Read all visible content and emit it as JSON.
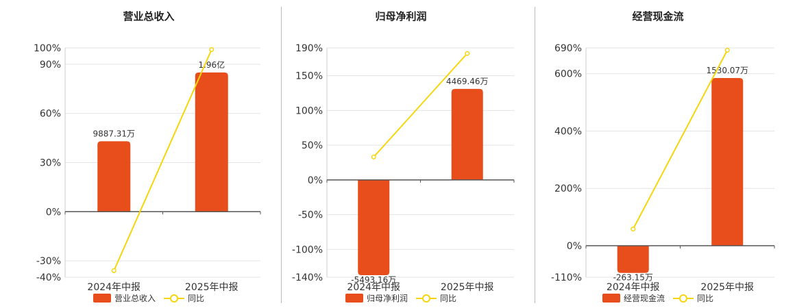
{
  "colors": {
    "bar": "#e84e1b",
    "line": "#f5d60a",
    "grid": "#e3e3e3",
    "axis": "#555555"
  },
  "chart_data": [
    {
      "type": "bar",
      "title": "营业总收入",
      "categories": [
        "2024年中报",
        "2025年中报"
      ],
      "ylim": [
        -40,
        100
      ],
      "y_ticks": [
        -40,
        -30,
        0,
        30,
        60,
        90,
        100
      ],
      "y_tick_labels": [
        "-40%",
        "-30%",
        "0%",
        "30%",
        "60%",
        "90%",
        "100%"
      ],
      "series": [
        {
          "name": "营业总收入",
          "type": "bar",
          "values": [
            43,
            85
          ],
          "value_labels": [
            "9887.31万",
            "1.96亿"
          ]
        },
        {
          "name": "同比",
          "type": "line",
          "values": [
            -36,
            99
          ]
        }
      ],
      "legend": "bottom",
      "grid": true
    },
    {
      "type": "bar",
      "title": "归母净利润",
      "categories": [
        "2024年中报",
        "2025年中报"
      ],
      "ylim": [
        -140,
        190
      ],
      "y_ticks": [
        -140,
        -100,
        -50,
        0,
        50,
        100,
        150,
        190
      ],
      "y_tick_labels": [
        "-140%",
        "-100%",
        "-50%",
        "0%",
        "50%",
        "100%",
        "150%",
        "190%"
      ],
      "series": [
        {
          "name": "归母净利润",
          "type": "bar",
          "values": [
            -137,
            131
          ],
          "value_labels": [
            "-5493.16万",
            "4469.46万"
          ]
        },
        {
          "name": "同比",
          "type": "line",
          "values": [
            33,
            182
          ]
        }
      ],
      "legend": "bottom",
      "grid": true
    },
    {
      "type": "bar",
      "title": "经营现金流",
      "categories": [
        "2024年中报",
        "2025年中报"
      ],
      "ylim": [
        -110,
        690
      ],
      "y_ticks": [
        -110,
        0,
        200,
        400,
        600,
        690
      ],
      "y_tick_labels": [
        "-110%",
        "0%",
        "200%",
        "400%",
        "600%",
        "690%"
      ],
      "series": [
        {
          "name": "经营现金流",
          "type": "bar",
          "values": [
            -95,
            585
          ],
          "value_labels": [
            "-263.15万",
            "1530.07万"
          ]
        },
        {
          "name": "同比",
          "type": "line",
          "values": [
            58,
            682
          ]
        }
      ],
      "legend": "bottom",
      "grid": true
    }
  ]
}
